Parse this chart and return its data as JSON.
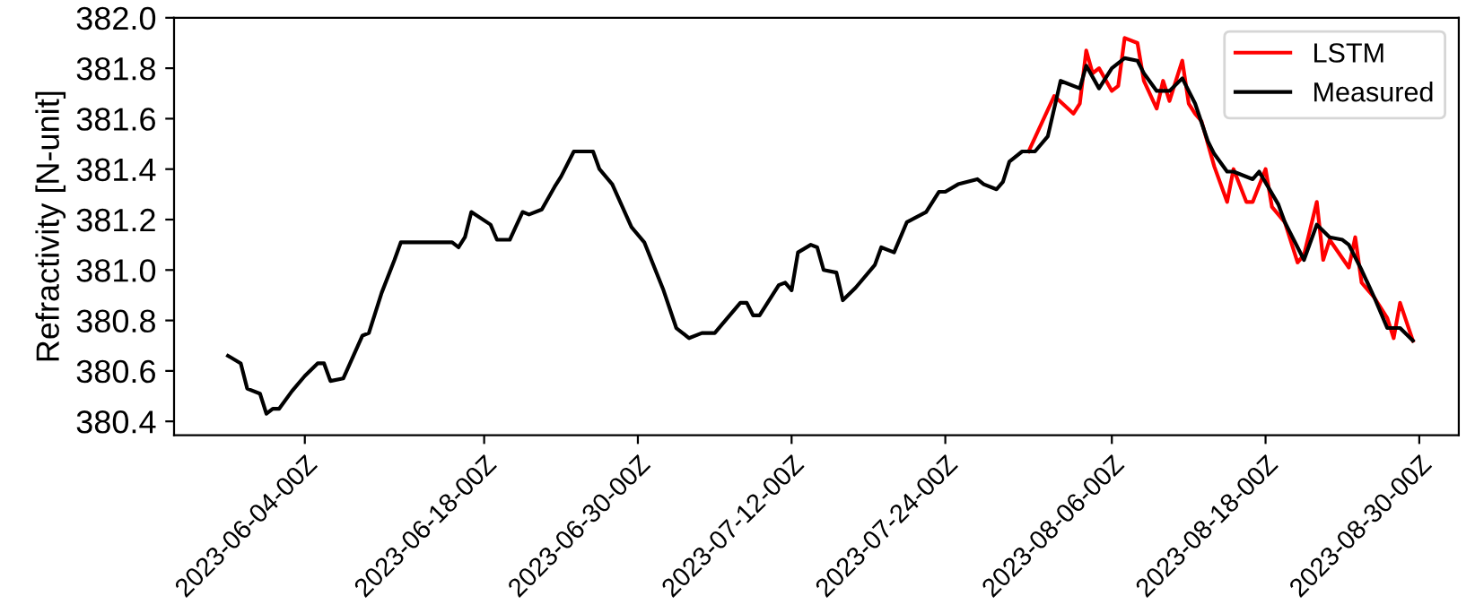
{
  "chart_data": {
    "type": "line",
    "ylabel": "Refractivity [N-unit]",
    "xlim": [
      "2023-05-24T19:00",
      "2023-09-02T02:00"
    ],
    "ylim": [
      380.345,
      382.0
    ],
    "xticks": [
      {
        "value": "2023-06-04",
        "label": "2023-06-04-00Z"
      },
      {
        "value": "2023-06-18",
        "label": "2023-06-18-00Z"
      },
      {
        "value": "2023-06-30",
        "label": "2023-06-30-00Z"
      },
      {
        "value": "2023-07-12",
        "label": "2023-07-12-00Z"
      },
      {
        "value": "2023-07-24",
        "label": "2023-07-24-00Z"
      },
      {
        "value": "2023-08-06",
        "label": "2023-08-06-00Z"
      },
      {
        "value": "2023-08-18",
        "label": "2023-08-18-00Z"
      },
      {
        "value": "2023-08-30",
        "label": "2023-08-30-00Z"
      }
    ],
    "yticks": [
      380.4,
      380.6,
      380.8,
      {
        "value": 381,
        "label": "381.0"
      },
      381.2,
      381.4,
      381.6,
      381.8,
      {
        "value": 382,
        "label": "382.0"
      }
    ],
    "grid": false,
    "legend": "top right",
    "marker": "none",
    "line_style": "solid",
    "series": [
      {
        "name": "LSTM",
        "color": "#ff0000",
        "x": [
          "2023-07-30T12:00",
          "2023-08-01T12:00",
          "2023-08-03",
          "2023-08-03T12:00",
          "2023-08-04",
          "2023-08-04T12:00",
          "2023-08-05",
          "2023-08-06",
          "2023-08-06T12:00",
          "2023-08-07",
          "2023-08-08",
          "2023-08-08T12:00",
          "2023-08-09T12:00",
          "2023-08-10",
          "2023-08-10T12:00",
          "2023-08-11T12:00",
          "2023-08-12",
          "2023-08-12T12:00",
          "2023-08-13",
          "2023-08-14",
          "2023-08-15",
          "2023-08-15T12:00",
          "2023-08-16T12:00",
          "2023-08-17",
          "2023-08-18",
          "2023-08-18T12:00",
          "2023-08-19T12:00",
          "2023-08-20T12:00",
          "2023-08-21",
          "2023-08-22",
          "2023-08-22T12:00",
          "2023-08-23",
          "2023-08-24T12:00",
          "2023-08-25",
          "2023-08-25T12:00",
          "2023-08-26T12:00",
          "2023-08-27T12:00",
          "2023-08-28",
          "2023-08-28T12:00",
          "2023-08-29T12:00"
        ],
        "values": [
          381.47,
          381.69,
          381.62,
          381.66,
          381.87,
          381.78,
          381.8,
          381.71,
          381.73,
          381.92,
          381.9,
          381.75,
          381.64,
          381.75,
          381.67,
          381.83,
          381.66,
          381.62,
          381.59,
          381.41,
          381.27,
          381.4,
          381.27,
          381.27,
          381.4,
          381.25,
          381.19,
          381.03,
          381.06,
          381.27,
          381.04,
          381.12,
          381.01,
          381.13,
          380.95,
          380.89,
          380.81,
          380.73,
          380.87,
          380.72
        ]
      },
      {
        "name": "Measured",
        "color": "#000000",
        "x": [
          "2023-05-29",
          "2023-05-30",
          "2023-05-30T12:00",
          "2023-05-31T12:00",
          "2023-06-01",
          "2023-06-01T12:00",
          "2023-06-02",
          "2023-06-03",
          "2023-06-04",
          "2023-06-05",
          "2023-06-05T12:00",
          "2023-06-06",
          "2023-06-07",
          "2023-06-08T12:00",
          "2023-06-09",
          "2023-06-10",
          "2023-06-11",
          "2023-06-11T12:00",
          "2023-06-15T12:00",
          "2023-06-16",
          "2023-06-16T12:00",
          "2023-06-17",
          "2023-06-18T12:00",
          "2023-06-19",
          "2023-06-20",
          "2023-06-21",
          "2023-06-21T12:00",
          "2023-06-22T12:00",
          "2023-06-23T12:00",
          "2023-06-24",
          "2023-06-25",
          "2023-06-26T12:00",
          "2023-06-27",
          "2023-06-28",
          "2023-06-29T12:00",
          "2023-06-30T12:00",
          "2023-07-02",
          "2023-07-03",
          "2023-07-04",
          "2023-07-05",
          "2023-07-06",
          "2023-07-06T12:00",
          "2023-07-08",
          "2023-07-08T12:00",
          "2023-07-09",
          "2023-07-09T12:00",
          "2023-07-11",
          "2023-07-11T12:00",
          "2023-07-12",
          "2023-07-12T12:00",
          "2023-07-13T12:00",
          "2023-07-14",
          "2023-07-14T12:00",
          "2023-07-15T12:00",
          "2023-07-16",
          "2023-07-17",
          "2023-07-18T12:00",
          "2023-07-19",
          "2023-07-20",
          "2023-07-21",
          "2023-07-22T12:00",
          "2023-07-23T12:00",
          "2023-07-24",
          "2023-07-25",
          "2023-07-26T12:00",
          "2023-07-27",
          "2023-07-28",
          "2023-07-28T12:00",
          "2023-07-29",
          "2023-07-30",
          "2023-07-31",
          "2023-08-01",
          "2023-08-02",
          "2023-08-03T12:00",
          "2023-08-04",
          "2023-08-05",
          "2023-08-06",
          "2023-08-07",
          "2023-08-08",
          "2023-08-08T12:00",
          "2023-08-09T12:00",
          "2023-08-10T12:00",
          "2023-08-11T12:00",
          "2023-08-12T12:00",
          "2023-08-13T12:00",
          "2023-08-14",
          "2023-08-15",
          "2023-08-15T12:00",
          "2023-08-17",
          "2023-08-17T12:00",
          "2023-08-19",
          "2023-08-19T12:00",
          "2023-08-21",
          "2023-08-22",
          "2023-08-23",
          "2023-08-24",
          "2023-08-24T12:00",
          "2023-08-25T12:00",
          "2023-08-26T12:00",
          "2023-08-27T12:00",
          "2023-08-28T12:00",
          "2023-08-29T12:00"
        ],
        "values": [
          380.66,
          380.63,
          380.53,
          380.51,
          380.43,
          380.45,
          380.45,
          380.52,
          380.58,
          380.63,
          380.63,
          380.56,
          380.57,
          380.74,
          380.75,
          380.91,
          381.04,
          381.11,
          381.11,
          381.09,
          381.13,
          381.23,
          381.18,
          381.12,
          381.12,
          381.23,
          381.22,
          381.24,
          381.33,
          381.37,
          381.47,
          381.47,
          381.4,
          381.34,
          381.17,
          381.11,
          380.92,
          380.77,
          380.73,
          380.75,
          380.75,
          380.78,
          380.87,
          380.87,
          380.82,
          380.82,
          380.94,
          380.95,
          380.92,
          381.07,
          381.1,
          381.09,
          381.0,
          380.99,
          380.88,
          380.93,
          381.02,
          381.09,
          381.07,
          381.19,
          381.23,
          381.31,
          381.31,
          381.34,
          381.36,
          381.34,
          381.32,
          381.35,
          381.43,
          381.47,
          381.47,
          381.53,
          381.75,
          381.72,
          381.81,
          381.72,
          381.8,
          381.84,
          381.83,
          381.78,
          381.71,
          381.71,
          381.76,
          381.66,
          381.51,
          381.46,
          381.39,
          381.39,
          381.36,
          381.39,
          381.26,
          381.19,
          381.04,
          381.18,
          381.13,
          381.12,
          381.1,
          381.0,
          380.89,
          380.77,
          380.77,
          380.72
        ]
      }
    ]
  }
}
